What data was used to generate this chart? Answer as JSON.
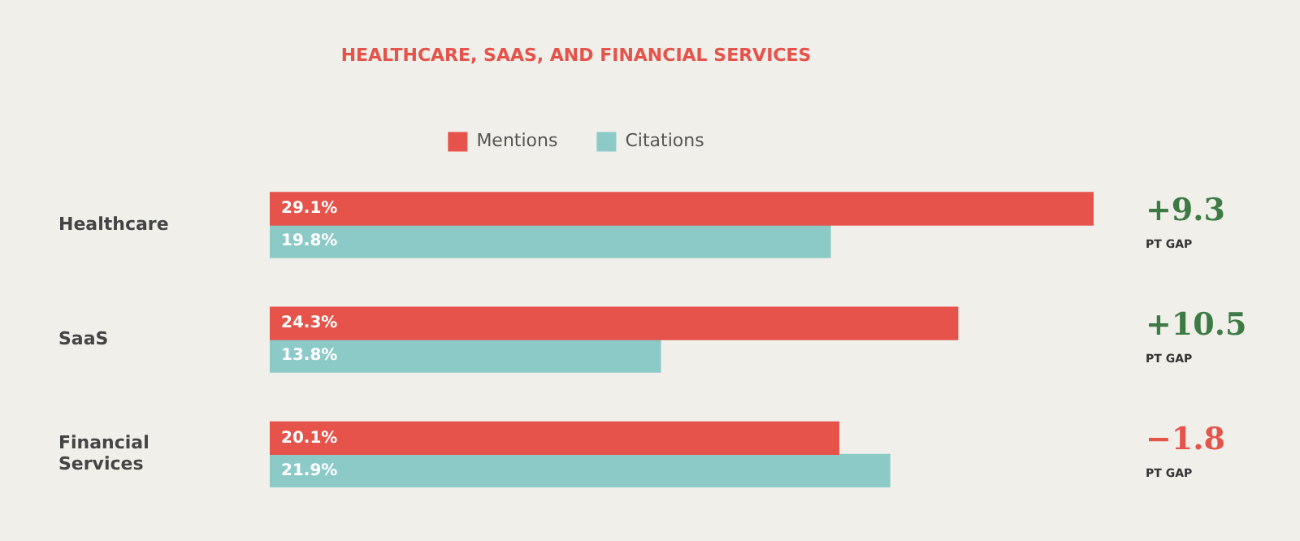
{
  "chart_data": {
    "type": "bar",
    "orientation": "horizontal",
    "title": "HEALTHCARE, SAAS, AND FINANCIAL SERVICES",
    "categories": [
      "Healthcare",
      "SaaS",
      "Financial Services"
    ],
    "series": [
      {
        "name": "Mentions",
        "color": "#e5534b",
        "values": [
          29.1,
          24.3,
          20.1
        ],
        "value_labels": [
          "29.1%",
          "24.3%",
          "20.1%"
        ]
      },
      {
        "name": "Citations",
        "color": "#8ccac8",
        "values": [
          19.8,
          13.8,
          21.9
        ],
        "value_labels": [
          "19.8%",
          "13.8%",
          "21.9%"
        ]
      }
    ],
    "annotations": [
      "+9.3",
      "PT GAP",
      "+10.5",
      "PT GAP",
      "−1.8",
      "PT GAP"
    ],
    "legend": "top",
    "grid": false
  }
}
